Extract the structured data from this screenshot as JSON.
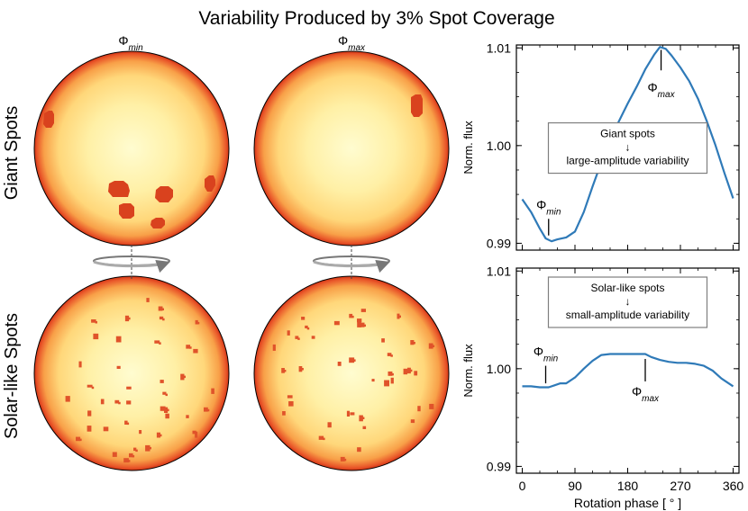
{
  "figure": {
    "title": "Variability Produced by 3% Spot Coverage",
    "row_labels": [
      "Giant Spots",
      "Solar-like Spots"
    ],
    "col_labels": [
      {
        "base": "Φ",
        "sub": "min"
      },
      {
        "base": "Φ",
        "sub": "max"
      }
    ],
    "colors": {
      "curve": "#2f7ab8",
      "star_core": "#fffcd0",
      "star_mid": "#ffd77a",
      "star_edge": "#e23a1c",
      "spot_giant": "#d9421e",
      "spot_small": "#e0532a",
      "box_border": "#7f7f7f"
    }
  },
  "chart_data": [
    {
      "type": "line",
      "id": "giant",
      "ylabel": "Norm. flux",
      "xlim": [
        -10,
        370
      ],
      "ylim": [
        0.9893,
        1.0103
      ],
      "yticks": [
        0.99,
        1.0,
        1.01
      ],
      "ytick_labels": [
        "0.99",
        "1.00",
        "1.01"
      ],
      "xticks": [
        0,
        90,
        180,
        270,
        360
      ],
      "xtick_labels": [
        "",
        "",
        "",
        "",
        ""
      ],
      "series": [
        {
          "name": "Giant spots",
          "x": [
            0,
            15,
            30,
            40,
            50,
            60,
            75,
            90,
            105,
            120,
            135,
            150,
            165,
            180,
            195,
            210,
            225,
            235,
            245,
            255,
            270,
            285,
            300,
            315,
            330,
            345,
            360
          ],
          "y": [
            0.9945,
            0.9932,
            0.9915,
            0.9905,
            0.9902,
            0.9904,
            0.9906,
            0.9912,
            0.9932,
            0.9958,
            0.9983,
            1.0005,
            1.0025,
            1.0043,
            1.006,
            1.0078,
            1.0093,
            1.0101,
            1.0099,
            1.0092,
            1.008,
            1.0066,
            1.0048,
            1.0025,
            1.0,
            0.9972,
            0.9946
          ]
        }
      ],
      "markers": [
        {
          "label_base": "Φ",
          "label_sub": "min",
          "x": 45,
          "y_from": 0.9908,
          "y_to": 0.9925,
          "label_y": 0.9935
        },
        {
          "label_base": "Φ",
          "label_sub": "max",
          "x": 237,
          "y_from": 1.0098,
          "y_to": 1.0077,
          "label_y": 1.0055
        }
      ],
      "annotation": {
        "lines": [
          "Giant spots",
          "↓",
          "large-amplitude variability"
        ],
        "x": 180,
        "y": 0.99975
      }
    },
    {
      "type": "line",
      "id": "solar",
      "ylabel": "Norm. flux",
      "xlabel": "Rotation phase [ ° ]",
      "xlim": [
        -10,
        370
      ],
      "ylim": [
        0.9893,
        1.0103
      ],
      "yticks": [
        0.99,
        1.0,
        1.01
      ],
      "ytick_labels": [
        "0.99",
        "1.00",
        "1.01"
      ],
      "xticks": [
        0,
        90,
        180,
        270,
        360
      ],
      "xtick_labels": [
        "0",
        "90",
        "180",
        "270",
        "360"
      ],
      "series": [
        {
          "name": "Solar-like spots",
          "x": [
            0,
            15,
            30,
            45,
            55,
            65,
            75,
            90,
            105,
            120,
            135,
            150,
            165,
            180,
            195,
            210,
            220,
            235,
            250,
            265,
            280,
            295,
            310,
            325,
            340,
            360
          ],
          "y": [
            0.9982,
            0.9982,
            0.9981,
            0.9981,
            0.9983,
            0.9985,
            0.9985,
            0.9991,
            1.0,
            1.0008,
            1.0014,
            1.0015,
            1.0015,
            1.0015,
            1.0015,
            1.0015,
            1.0012,
            1.0009,
            1.0007,
            1.0006,
            1.0006,
            1.0005,
            1.0003,
            0.9998,
            0.999,
            0.9982
          ]
        }
      ],
      "markers": [
        {
          "label_base": "Φ",
          "label_sub": "min",
          "x": 40,
          "y_from": 0.9985,
          "y_to": 1.0003,
          "label_y": 1.0013
        },
        {
          "label_base": "Φ",
          "label_sub": "max",
          "x": 210,
          "y_from": 1.001,
          "y_to": 0.9987,
          "label_y": 0.9972
        }
      ],
      "annotation": {
        "lines": [
          "Solar-like spots",
          "↓",
          "small-amplitude variability"
        ],
        "x": 180,
        "y": 1.0068
      }
    }
  ]
}
